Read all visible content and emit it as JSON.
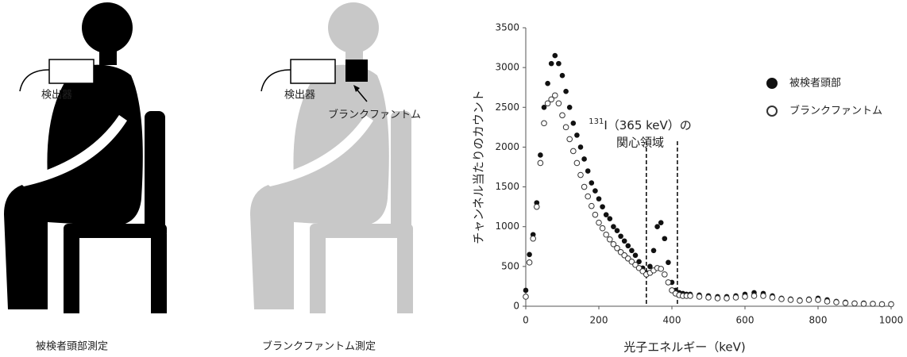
{
  "figures": {
    "left": {
      "detector": "検出器",
      "caption": "被検者頭部測定"
    },
    "center": {
      "detector": "検出器",
      "phantom": "ブランクファントム",
      "caption": "ブランクファントム測定"
    }
  },
  "chart_data": {
    "type": "scatter",
    "xlabel": "光子エネルギー（keV)",
    "ylabel": "チャンネル当たりのカウント",
    "annotation": {
      "sup": "131",
      "line1": "I（365 keV）の",
      "line2": "関心領域"
    },
    "roi": [
      330,
      415
    ],
    "xlim": [
      0,
      1000
    ],
    "xticks": [
      0,
      200,
      400,
      600,
      800,
      1000
    ],
    "ylim": [
      0,
      3500
    ],
    "yticks": [
      0,
      500,
      1000,
      1500,
      2000,
      2500,
      3000,
      3500
    ],
    "legend": "upper right",
    "x": [
      0,
      10,
      20,
      30,
      40,
      50,
      60,
      70,
      80,
      90,
      100,
      110,
      120,
      130,
      140,
      150,
      160,
      170,
      180,
      190,
      200,
      210,
      220,
      230,
      240,
      250,
      260,
      270,
      280,
      290,
      300,
      310,
      320,
      330,
      340,
      350,
      360,
      370,
      380,
      390,
      400,
      410,
      420,
      430,
      440,
      450,
      475,
      500,
      525,
      550,
      575,
      600,
      625,
      650,
      675,
      700,
      725,
      750,
      775,
      800,
      825,
      850,
      875,
      900,
      925,
      950,
      975,
      1000
    ],
    "series": [
      {
        "name": "被検者頭部",
        "color": "#111111",
        "marker": "filled",
        "values": [
          200,
          650,
          900,
          1300,
          1900,
          2500,
          2800,
          3050,
          3150,
          3050,
          2900,
          2700,
          2500,
          2300,
          2150,
          2000,
          1850,
          1700,
          1550,
          1450,
          1350,
          1250,
          1150,
          1100,
          1000,
          950,
          880,
          820,
          760,
          700,
          640,
          560,
          480,
          420,
          500,
          700,
          1000,
          1050,
          850,
          550,
          300,
          200,
          170,
          160,
          150,
          150,
          140,
          130,
          120,
          120,
          130,
          150,
          170,
          160,
          130,
          100,
          90,
          80,
          90,
          100,
          80,
          60,
          50,
          40,
          40,
          35,
          30,
          30
        ]
      },
      {
        "name": "ブランクファントム",
        "color": "#333333",
        "marker": "open",
        "values": [
          120,
          550,
          850,
          1250,
          1800,
          2300,
          2550,
          2600,
          2650,
          2550,
          2400,
          2250,
          2100,
          1950,
          1800,
          1650,
          1500,
          1380,
          1260,
          1150,
          1050,
          980,
          900,
          840,
          780,
          730,
          680,
          640,
          600,
          560,
          520,
          480,
          440,
          400,
          420,
          450,
          480,
          470,
          400,
          300,
          200,
          160,
          140,
          130,
          130,
          130,
          120,
          110,
          100,
          100,
          110,
          120,
          130,
          130,
          110,
          90,
          80,
          70,
          80,
          80,
          60,
          50,
          40,
          35,
          30,
          30,
          25,
          25
        ]
      }
    ]
  }
}
